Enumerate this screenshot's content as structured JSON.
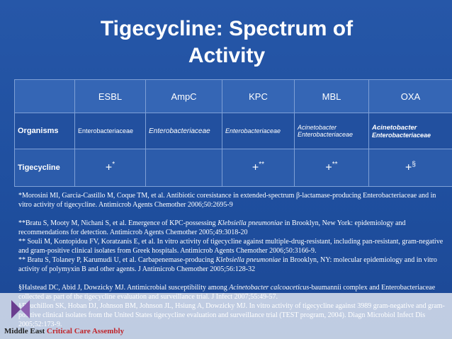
{
  "header": {
    "title_lines": [
      "Tigecycline: Spectrum of",
      "Activity"
    ]
  },
  "table": {
    "columns": [
      "ESBL",
      "AmpC",
      "KPC",
      "MBL",
      "OXA"
    ],
    "organisms_label": "Organisms",
    "organisms": [
      [
        "Enterobacteriaceae"
      ],
      [
        "Enterobacteriaceae"
      ],
      [
        "Enterobacteriaceae"
      ],
      [
        "Acinetobacter",
        "Enterobacteriaceae"
      ],
      [
        "Acinetobacter",
        "Enterobacteriaceae"
      ]
    ],
    "tigecycline_label": "Tigecycline",
    "tigecycline": {
      "esbl": [
        "+",
        "*"
      ],
      "kpc": [
        "+",
        "**"
      ],
      "mbl": [
        "+",
        "**"
      ],
      "oxa": [
        "+",
        "§"
      ]
    }
  },
  "references": [
    [
      "*Morosini MI, Garcia-Castillo M, Coque TM, et al. Antibiotic coresistance in extended-spectrum β-lactamase-producing Enterobacteriaceae and in vitro activity of tigecycline. Antimicrob Agents Chemother 2006;50:2695-9"
    ],
    [
      "**Bratu S, Mooty M, Nichani S, et al. Emergence of KPC-possessing ",
      "Klebsiella pneumoniae",
      " in Brooklyn, New York: epidemiology and recommendations for detection. Antimicrob Agents Chemother 2005;49:3018-20"
    ],
    [
      "** Souli M, Kontopidou FV, Koratzanis E, et al. In vitro activity of tigecycline against multiple-drug-resistant, including pan-resistant, gram-negative and gram-positive clinical isolates from Greek hospitals. Antimicrob Agents Chemother 2006;50:3166-9."
    ],
    [
      "** Bratu S, Tolaney P, Karumudi U, et al. Carbapenemase-producing ",
      "Klebsiella pneumoniae",
      " in Brooklyn, NY: molecular epidemiology and in vitro activity of polymyxin B and other agents. J Antimicrob Chemother 2005;56:128-32"
    ],
    [
      "§Halstead DC, Abid J, Dowzicky MJ. Antimicrobial susceptibility among ",
      "Acinetobacter calcoaceticus",
      "-baumannii complex and Enterobacteriaceae collected as part of the tigecycline evaluation and surveillance trial. J Infect 2007;55:49-57."
    ],
    [
      "§Bouchillon SK, Hoban DJ, Johnson BM, Johnson JL, Hsiung A, Dowzicky MJ. In vitro activity of tigecycline against 3989 gram-negative and gram-positive clinical isolates from the United States tigecycline evaluation and surveillance trial (TEST program, 2004). Diagn Microbiol Infect Dis 2005;52:173-9."
    ]
  ],
  "footer": {
    "part1": "Middle East",
    "part2": "Critical Care Assembly"
  }
}
